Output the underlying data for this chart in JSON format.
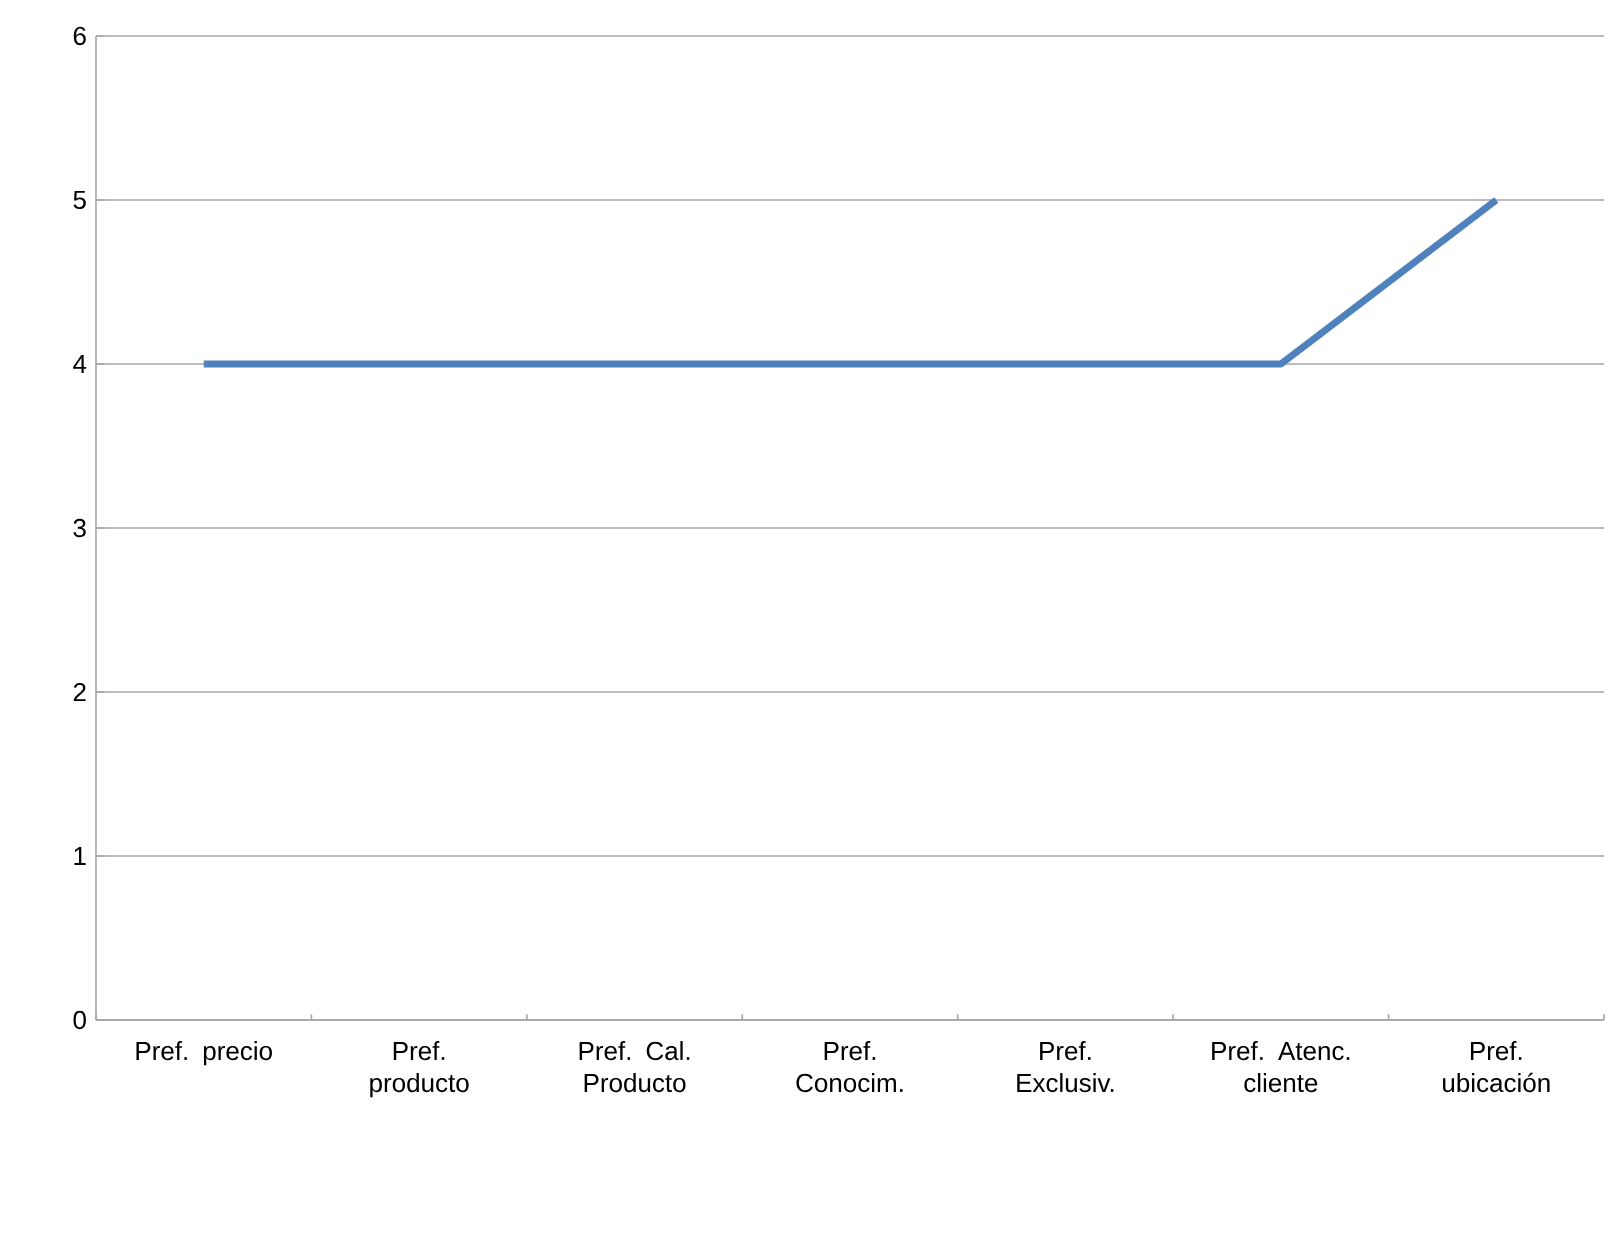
{
  "chart_data": {
    "type": "line",
    "categories": [
      "Pref. precio",
      "Pref. producto",
      "Pref. Cal. Producto",
      "Pref. Conocim.",
      "Pref. Exclusiv.",
      "Pref. Atenc. cliente",
      "Pref. ubicación"
    ],
    "series": [
      {
        "color": "#4f81bd",
        "values": [
          4,
          4,
          4,
          4,
          4,
          4,
          5
        ]
      }
    ],
    "ylim": [
      0,
      6
    ],
    "yticks": [
      0,
      1,
      2,
      3,
      4,
      5,
      6
    ],
    "grid": "y",
    "legend": false,
    "marker": "none",
    "line_style": "solid"
  }
}
